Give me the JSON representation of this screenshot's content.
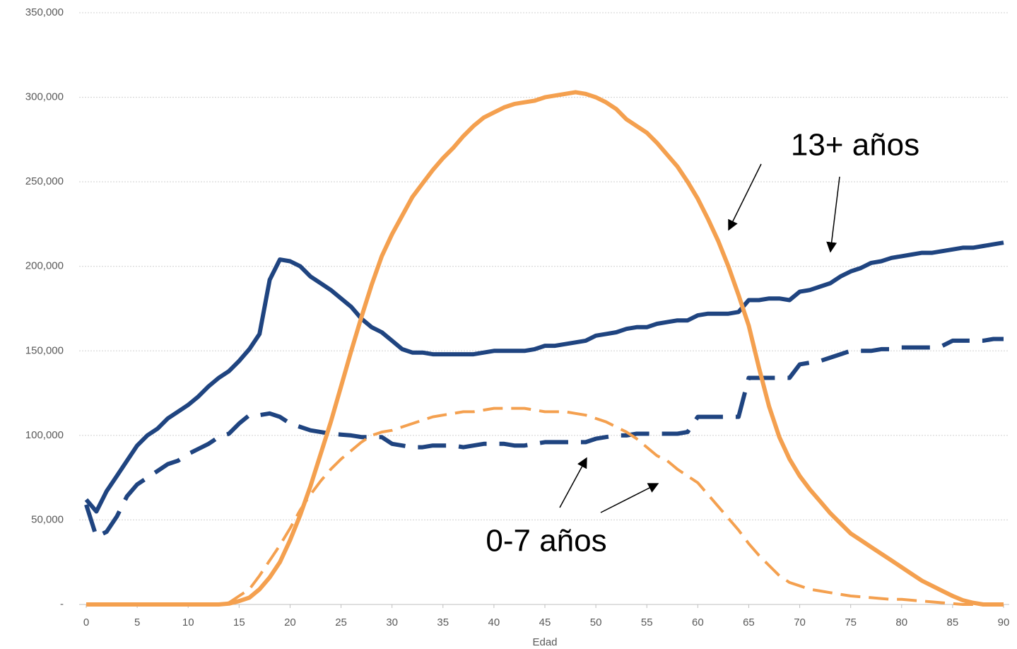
{
  "chart_data": {
    "type": "line",
    "x_label": "Edad",
    "x": [
      0,
      1,
      2,
      3,
      4,
      5,
      6,
      7,
      8,
      9,
      10,
      11,
      12,
      13,
      14,
      15,
      16,
      17,
      18,
      19,
      20,
      21,
      22,
      23,
      24,
      25,
      26,
      27,
      28,
      29,
      30,
      31,
      32,
      33,
      34,
      35,
      36,
      37,
      38,
      39,
      40,
      41,
      42,
      43,
      44,
      45,
      46,
      47,
      48,
      49,
      50,
      51,
      52,
      53,
      54,
      55,
      56,
      57,
      58,
      59,
      60,
      61,
      62,
      63,
      64,
      65,
      66,
      67,
      68,
      69,
      70,
      71,
      72,
      73,
      74,
      75,
      76,
      77,
      78,
      79,
      80,
      81,
      82,
      83,
      84,
      85,
      86,
      87,
      88,
      89,
      90
    ],
    "series": [
      {
        "color": "#1f4480",
        "dash": false,
        "values": [
          62000,
          55000,
          67000,
          76000,
          85000,
          94000,
          100000,
          104000,
          110000,
          114000,
          118000,
          123000,
          129000,
          134000,
          138000,
          144000,
          151000,
          160000,
          192000,
          204000,
          203000,
          200000,
          194000,
          190000,
          186000,
          181000,
          176000,
          169000,
          164000,
          161000,
          156000,
          151000,
          149000,
          149000,
          148000,
          148000,
          148000,
          148000,
          148000,
          149000,
          150000,
          150000,
          150000,
          150000,
          151000,
          153000,
          153000,
          154000,
          155000,
          156000,
          159000,
          160000,
          161000,
          163000,
          164000,
          164000,
          166000,
          167000,
          168000,
          168000,
          171000,
          172000,
          172000,
          172000,
          173000,
          180000,
          180000,
          181000,
          181000,
          180000,
          185000,
          186000,
          188000,
          190000,
          194000,
          197000,
          199000,
          202000,
          203000,
          205000,
          206000,
          207000,
          208000,
          208000,
          209000,
          210000,
          211000,
          211000,
          212000,
          213000,
          214000
        ]
      },
      {
        "color": "#1f4480",
        "dash": true,
        "values": [
          59000,
          40000,
          43000,
          52000,
          64000,
          71000,
          75000,
          79000,
          83000,
          85000,
          89000,
          92000,
          95000,
          99000,
          101000,
          107000,
          112000,
          112000,
          113000,
          111000,
          107000,
          105000,
          103000,
          102000,
          101000,
          100500,
          100000,
          99000,
          99000,
          99000,
          95000,
          94000,
          93000,
          93000,
          94000,
          94000,
          94000,
          93000,
          94000,
          95000,
          95000,
          95000,
          94000,
          94000,
          95000,
          96000,
          96000,
          96000,
          96000,
          96000,
          98000,
          99000,
          100000,
          100000,
          101000,
          101000,
          101000,
          101000,
          101000,
          102000,
          111000,
          111000,
          111000,
          111000,
          111000,
          134000,
          134000,
          134000,
          134000,
          134000,
          142000,
          143000,
          144000,
          146000,
          148000,
          150000,
          150000,
          150000,
          151000,
          151000,
          152000,
          152000,
          152000,
          152000,
          153000,
          156000,
          156000,
          156000,
          156000,
          157000,
          157000
        ]
      },
      {
        "color": "#f4a04f",
        "dash": false,
        "values": [
          0,
          0,
          0,
          0,
          0,
          0,
          0,
          0,
          0,
          0,
          0,
          0,
          0,
          0,
          500,
          2000,
          4000,
          9000,
          16000,
          25000,
          38000,
          53000,
          70000,
          89000,
          108000,
          129000,
          150000,
          170000,
          189000,
          206000,
          219000,
          230000,
          241000,
          249000,
          257000,
          264000,
          270000,
          277000,
          283000,
          288000,
          291000,
          294000,
          296000,
          297000,
          298000,
          300000,
          301000,
          302000,
          303000,
          302000,
          300000,
          297000,
          293000,
          287000,
          283000,
          279000,
          273000,
          266000,
          259000,
          250000,
          240000,
          228000,
          215000,
          200000,
          183000,
          165000,
          140000,
          117000,
          99000,
          86000,
          76000,
          68000,
          61000,
          54000,
          48000,
          42000,
          38000,
          34000,
          30000,
          26000,
          22000,
          18000,
          14000,
          11000,
          8000,
          5000,
          2500,
          1000,
          0,
          0,
          0
        ]
      },
      {
        "color": "#f4a04f",
        "dash": true,
        "values": [
          0,
          0,
          0,
          0,
          0,
          0,
          0,
          0,
          0,
          0,
          0,
          0,
          0,
          0,
          1000,
          5000,
          9000,
          17000,
          26000,
          35000,
          45000,
          56000,
          65000,
          73000,
          80000,
          86000,
          91000,
          96000,
          100000,
          102000,
          103000,
          105000,
          107000,
          109000,
          111000,
          112000,
          113000,
          114000,
          114000,
          115000,
          116000,
          116000,
          116000,
          116000,
          115000,
          114000,
          114000,
          114000,
          113000,
          112000,
          110000,
          108000,
          105000,
          102000,
          98000,
          93000,
          88000,
          85000,
          80000,
          76000,
          72000,
          65000,
          58000,
          51000,
          44000,
          36000,
          29000,
          23000,
          17000,
          13000,
          11000,
          9000,
          8000,
          7000,
          6000,
          5000,
          4500,
          4000,
          3500,
          3000,
          3000,
          2500,
          2000,
          1500,
          1000,
          500,
          0,
          0,
          0,
          0,
          0
        ]
      }
    ],
    "xlim": [
      0,
      90
    ],
    "xticks": [
      0,
      5,
      10,
      15,
      20,
      25,
      30,
      35,
      40,
      45,
      50,
      55,
      60,
      65,
      70,
      75,
      80,
      85,
      90
    ],
    "ylim": [
      0,
      350000
    ],
    "yticks": [
      {
        "value": 0,
        "label": "-"
      },
      {
        "value": 50000,
        "label": "50,000"
      },
      {
        "value": 100000,
        "label": "100,000"
      },
      {
        "value": 150000,
        "label": "150,000"
      },
      {
        "value": 200000,
        "label": "200,000"
      },
      {
        "value": 250000,
        "label": "250,000"
      },
      {
        "value": 300000,
        "label": "300,000"
      },
      {
        "value": 350000,
        "label": "350,000"
      }
    ],
    "grid": true,
    "annotations": [
      "13+ años",
      "0-7 años"
    ]
  }
}
